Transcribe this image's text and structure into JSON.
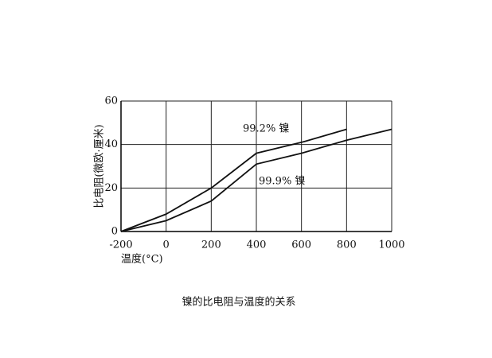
{
  "chart_data": {
    "type": "line",
    "caption": "镍的比电阻与温度的关系",
    "y_label": "比电阻(微欧·厘米)",
    "x_label": "温度(°C)",
    "x": [
      -200,
      0,
      200,
      400,
      600,
      800,
      1000
    ],
    "series": [
      {
        "name": "99.2% 镍",
        "color": "#111111",
        "values": [
          0,
          8,
          20,
          36,
          41,
          47,
          null
        ]
      },
      {
        "name": "99.9% 镍",
        "color": "#111111",
        "values": [
          0,
          5,
          14,
          31,
          36,
          42,
          47
        ]
      }
    ],
    "xlim": [
      -200,
      1000
    ],
    "xticks": [
      -200,
      0,
      200,
      400,
      600,
      800,
      1000
    ],
    "ylim": [
      0,
      60
    ],
    "yticks": [
      0,
      20,
      40,
      60
    ],
    "grid": true
  }
}
